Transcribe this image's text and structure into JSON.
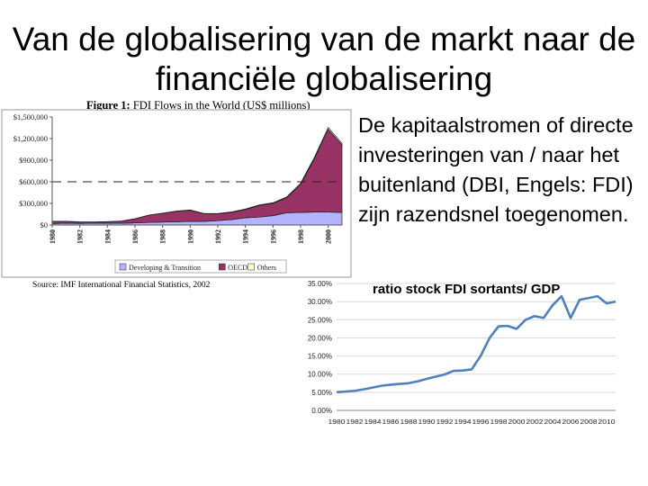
{
  "slide": {
    "title_line1": "Van de globalisering van de markt naar de",
    "title_line2": "financiële globalisering",
    "body_text": "De kapitaalstromen of directe investeringen van / naar het buitenland (DBI, Engels: FDI) zijn razendsnel toegenomen."
  },
  "chart_data": [
    {
      "type": "area",
      "title": "Figure 1:",
      "subtitle": "FDI Flows in the World (US$ millions)",
      "source": "Source: IMF International Financial Statistics, 2002",
      "x": [
        1980,
        1981,
        1982,
        1983,
        1984,
        1985,
        1986,
        1987,
        1988,
        1989,
        1990,
        1991,
        1992,
        1993,
        1994,
        1995,
        1996,
        1997,
        1998,
        1999,
        2000,
        2001
      ],
      "x_tick_labels": [
        "1980",
        "1982",
        "1984",
        "1986",
        "1988",
        "1990",
        "1992",
        "1994",
        "1996",
        "1998",
        "2000"
      ],
      "y_tick_labels": [
        "$0",
        "$300,000",
        "$600,000",
        "$900,000",
        "$1,200,000",
        "$1,500,000"
      ],
      "ylim": [
        0,
        1500000
      ],
      "stacked": true,
      "reference_line": 600000,
      "series": [
        {
          "name": "Developing & Transition",
          "color": "#b3b3ff",
          "values": [
            20000,
            25000,
            22000,
            25000,
            25000,
            23000,
            30000,
            35000,
            40000,
            45000,
            50000,
            50000,
            60000,
            75000,
            100000,
            110000,
            130000,
            170000,
            175000,
            180000,
            180000,
            175000
          ]
        },
        {
          "name": "OECD",
          "color": "#993366",
          "values": [
            30000,
            25000,
            20000,
            15000,
            20000,
            30000,
            55000,
            100000,
            120000,
            145000,
            155000,
            105000,
            95000,
            100000,
            115000,
            160000,
            170000,
            210000,
            390000,
            740000,
            1150000,
            940000
          ]
        },
        {
          "name": "Others",
          "color": "#ffffcc",
          "values": [
            2000,
            2000,
            2000,
            2000,
            2000,
            2000,
            3000,
            3000,
            4000,
            4000,
            5000,
            5000,
            5000,
            6000,
            7000,
            8000,
            9000,
            10000,
            15000,
            20000,
            25000,
            20000
          ]
        }
      ]
    },
    {
      "type": "line",
      "title": "ratio stock FDI sortants/ GDP",
      "x": [
        1980,
        1981,
        1982,
        1983,
        1984,
        1985,
        1986,
        1987,
        1988,
        1989,
        1990,
        1991,
        1992,
        1993,
        1994,
        1995,
        1996,
        1997,
        1998,
        1999,
        2000,
        2001,
        2002,
        2003,
        2004,
        2005,
        2006,
        2007,
        2008,
        2009,
        2010,
        2011
      ],
      "x_tick_labels": [
        "1980",
        "1982",
        "1984",
        "1986",
        "1988",
        "1990",
        "1992",
        "1994",
        "1996",
        "1998",
        "2000",
        "2002",
        "2004",
        "2006",
        "2008",
        "2010"
      ],
      "y_tick_labels": [
        "0.00%",
        "5.00%",
        "10.00%",
        "15.00%",
        "20.00%",
        "25.00%",
        "30.00%",
        "35.00%"
      ],
      "ylim": [
        0,
        35
      ],
      "series": [
        {
          "color": "#4f81bd",
          "values": [
            5.0,
            5.2,
            5.4,
            5.8,
            6.3,
            6.8,
            7.1,
            7.3,
            7.5,
            8.0,
            8.7,
            9.3,
            9.9,
            10.9,
            11.0,
            11.3,
            15.0,
            20.0,
            23.2,
            23.3,
            22.5,
            25.0,
            26.0,
            25.5,
            29.0,
            31.5,
            25.5,
            30.5,
            31.0,
            31.5,
            29.5,
            30.0
          ]
        }
      ]
    }
  ]
}
